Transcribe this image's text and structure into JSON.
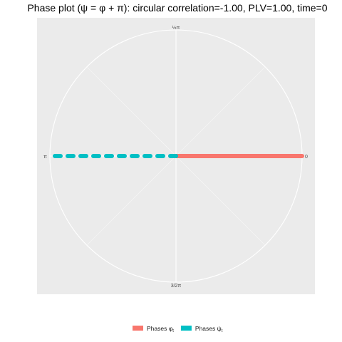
{
  "chart_data": {
    "type": "line",
    "title": "Phase plot (ψ = φ + π): circular correlation=-1.00, PLV=1.00, time=0",
    "coord": "polar",
    "angle_ticks": [
      {
        "label": "0",
        "angle": 0
      },
      {
        "label": "½π",
        "angle": 90
      },
      {
        "label": "π",
        "angle": 180
      },
      {
        "label": "3/2π",
        "angle": 270
      }
    ],
    "r_range": [
      0,
      1
    ],
    "grid": true,
    "legend_position": "bottom",
    "series": [
      {
        "name": "Phases φt",
        "legend_main": "Phases φ",
        "legend_sub": "t",
        "color": "#F8766D",
        "line_style": "solid",
        "angle": 0,
        "r": [
          0,
          1
        ]
      },
      {
        "name": "Phases ψt",
        "legend_main": "Phases ψ",
        "legend_sub": "t",
        "color": "#00BFC4",
        "line_style": "dashed",
        "angle": 180,
        "r": [
          0,
          1
        ]
      }
    ]
  }
}
